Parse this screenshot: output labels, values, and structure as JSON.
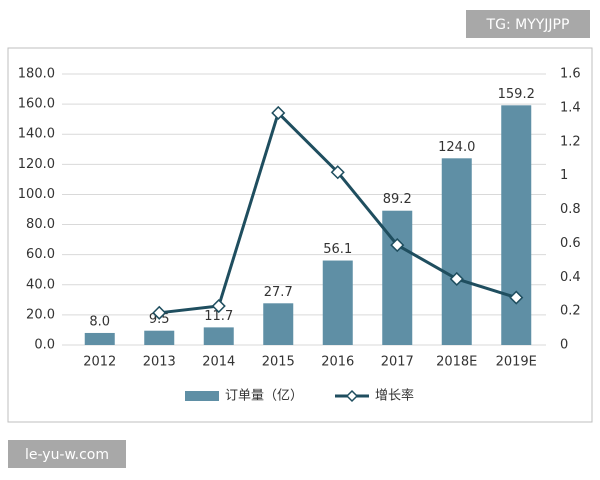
{
  "watermarks": [
    "TG: MYYJJPP",
    "le-yu-w.com"
  ],
  "chart_data": {
    "type": "bar",
    "categories": [
      "2012",
      "2013",
      "2014",
      "2015",
      "2016",
      "2017",
      "2018E",
      "2019E"
    ],
    "series": [
      {
        "name": "订单量（亿）",
        "color": "#5f8fa5",
        "values": [
          8.0,
          9.5,
          11.7,
          27.7,
          56.1,
          89.2,
          124.0,
          159.2
        ],
        "value_labels": [
          "8.0",
          "9.5",
          "11.7",
          "27.7",
          "56.1",
          "89.2",
          "124.0",
          "159.2"
        ]
      },
      {
        "name": "增长率",
        "color": "#1f4e5f",
        "axis": "y2",
        "values": [
          null,
          0.19,
          0.23,
          1.37,
          1.02,
          0.59,
          0.39,
          0.28
        ]
      }
    ],
    "ylim": [
      0,
      180
    ],
    "yticks": [
      {
        "value": 0,
        "label": "0.0"
      },
      {
        "value": 20,
        "label": "20.0"
      },
      {
        "value": 40,
        "label": "40.0"
      },
      {
        "value": 60,
        "label": "60.0"
      },
      {
        "value": 80,
        "label": "80.0"
      },
      {
        "value": 100,
        "label": "100.0"
      },
      {
        "value": 120,
        "label": "120.0"
      },
      {
        "value": 140,
        "label": "140.0"
      },
      {
        "value": 160,
        "label": "160.0"
      },
      {
        "value": 180,
        "label": "180.0"
      }
    ],
    "y2lim": [
      0,
      1.6
    ],
    "y2ticks": [
      0,
      0.2,
      0.4,
      0.6,
      0.8,
      1,
      1.2,
      1.4,
      1.6
    ],
    "grid": true
  }
}
